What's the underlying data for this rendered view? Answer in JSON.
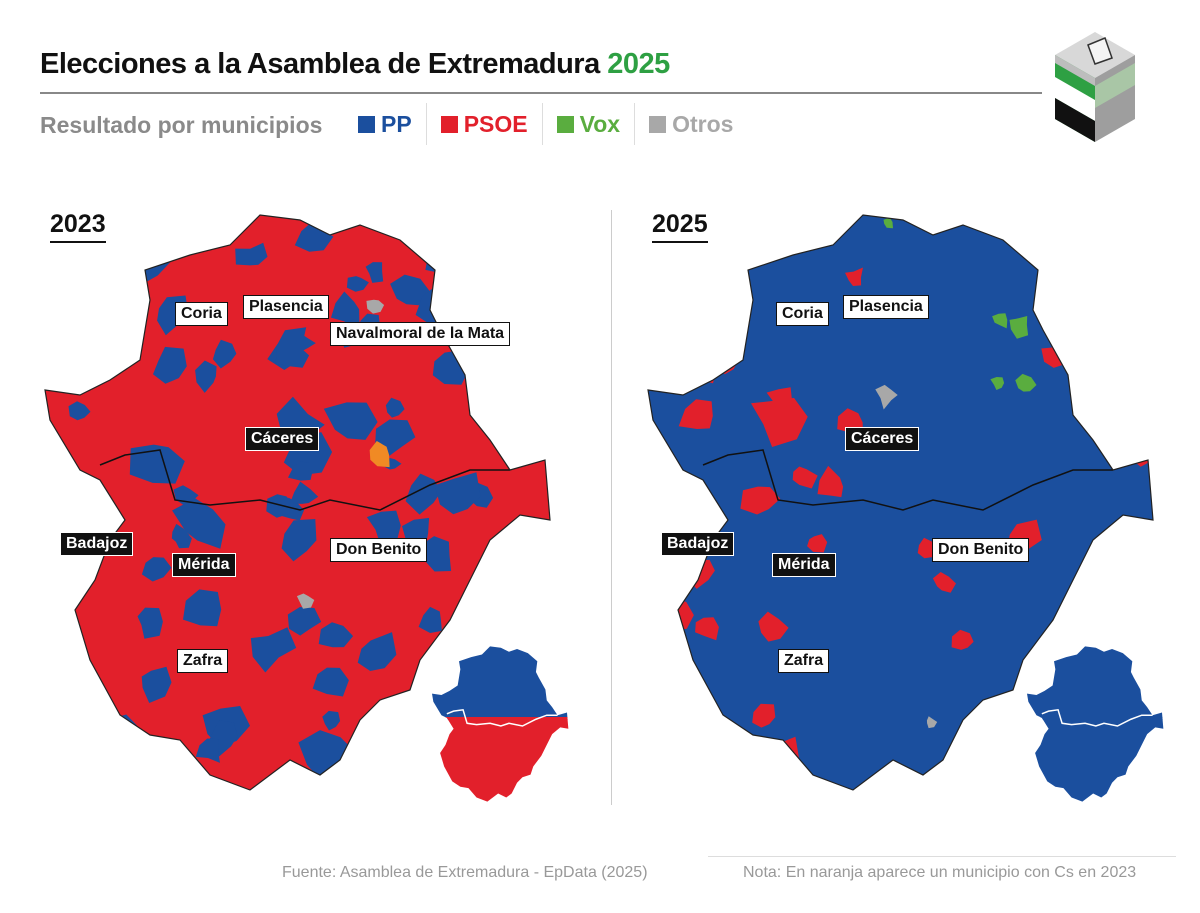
{
  "header": {
    "title": "Elecciones a la Asamblea de Extremadura",
    "title_year": "2025",
    "subtitle": "Resultado por municipios"
  },
  "legend": [
    {
      "label": "PP",
      "color": "#1b4f9e"
    },
    {
      "label": "PSOE",
      "color": "#e2202b"
    },
    {
      "label": "Vox",
      "color": "#5aad3f"
    },
    {
      "label": "Otros",
      "color": "#a8a8a8"
    }
  ],
  "colors": {
    "cs_orange": "#f08a24",
    "title_green": "#2ea043"
  },
  "maps": [
    {
      "year": "2023",
      "labels": [
        "Coria",
        "Plasencia",
        "Navalmoral de la Mata",
        "Cáceres",
        "Badajoz",
        "Mérida",
        "Don Benito",
        "Zafra"
      ],
      "inset": {
        "caceres": "PP",
        "badajoz": "PSOE"
      }
    },
    {
      "year": "2025",
      "labels": [
        "Coria",
        "Plasencia",
        "Cáceres",
        "Badajoz",
        "Mérida",
        "Don Benito",
        "Zafra"
      ],
      "inset": {
        "caceres": "PP",
        "badajoz": "PP"
      }
    }
  ],
  "footer": {
    "source": "Fuente: Asamblea de Extremadura - EpData (2025)",
    "note": "Nota: En naranja aparece un municipio con Cs en 2023"
  }
}
